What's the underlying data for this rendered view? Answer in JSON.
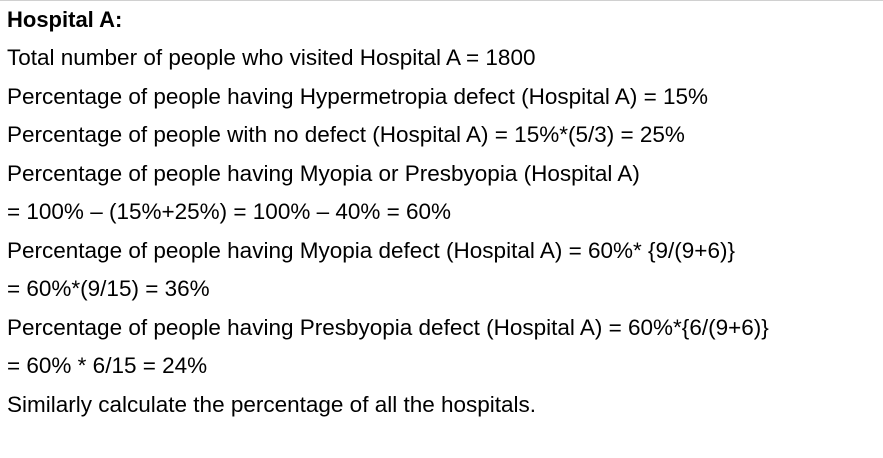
{
  "heading": "Hospital A:",
  "lines": [
    "Total number of people who visited Hospital A = 1800",
    "Percentage of people having Hypermetropia defect (Hospital A) = 15%",
    "Percentage of people with no defect (Hospital A) = 15%*(5/3) = 25%",
    "Percentage of people having Myopia or Presbyopia (Hospital A)",
    "= 100% – (15%+25%) = 100% – 40% = 60%",
    "Percentage of people having Myopia defect (Hospital A) = 60%* {9/(9+6)}",
    "= 60%*(9/15) = 36%",
    "Percentage of people having Presbyopia defect (Hospital A) = 60%*{6/(9+6)}",
    "= 60% * 6/15 = 24%",
    "Similarly calculate the percentage of all the hospitals."
  ]
}
